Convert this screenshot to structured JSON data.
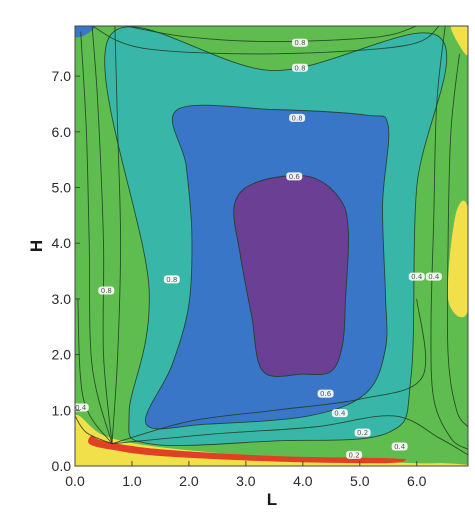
{
  "chart_data": {
    "type": "contour",
    "xlabel": "L",
    "ylabel": "H",
    "xlim": [
      0.0,
      6.9
    ],
    "ylim": [
      0.0,
      7.9
    ],
    "x_ticks": [
      "0.0",
      "1.0",
      "2.0",
      "3.0",
      "4.0",
      "5.0",
      "6.0"
    ],
    "y_ticks": [
      "0.0",
      "1.0",
      "2.0",
      "3.0",
      "4.0",
      "5.0",
      "6.0",
      "7.0"
    ],
    "y_tick_values": [
      0,
      1,
      2,
      3,
      4,
      5,
      6,
      7
    ],
    "x_tick_values": [
      0,
      1,
      2,
      3,
      4,
      5,
      6
    ],
    "grid": false,
    "filled_levels": [
      {
        "color": "#5fbd4f",
        "points": [
          [
            0,
            0
          ],
          [
            6.9,
            0
          ],
          [
            6.9,
            7.9
          ],
          [
            0,
            7.9
          ]
        ]
      },
      {
        "color": "#38b7a9",
        "points": [
          [
            0.95,
            0.95
          ],
          [
            1.3,
            3.2
          ],
          [
            0.6,
            7.7
          ],
          [
            3.5,
            7.1
          ],
          [
            6.4,
            7.7
          ],
          [
            6.0,
            5.0
          ],
          [
            5.9,
            1.6
          ],
          [
            5.5,
            0.6
          ],
          [
            3.5,
            0.45
          ],
          [
            1.3,
            0.4
          ]
        ]
      },
      {
        "color": "#3a76c7",
        "points": [
          [
            1.25,
            0.75
          ],
          [
            1.7,
            1.8
          ],
          [
            2.0,
            2.9
          ],
          [
            2.05,
            4.2
          ],
          [
            1.95,
            5.4
          ],
          [
            1.8,
            6.4
          ],
          [
            3.5,
            6.4
          ],
          [
            5.1,
            6.3
          ],
          [
            5.5,
            6.1
          ],
          [
            5.4,
            4.7
          ],
          [
            5.45,
            3.1
          ],
          [
            5.45,
            2.1
          ],
          [
            5.1,
            1.3
          ],
          [
            4.1,
            0.9
          ],
          [
            2.3,
            0.75
          ]
        ]
      },
      {
        "color": "#6b3f93",
        "points": [
          [
            3.3,
            1.7
          ],
          [
            3.1,
            2.7
          ],
          [
            2.9,
            3.8
          ],
          [
            2.8,
            4.7
          ],
          [
            3.2,
            5.1
          ],
          [
            4.1,
            5.2
          ],
          [
            4.65,
            4.8
          ],
          [
            4.8,
            4.2
          ],
          [
            4.75,
            3.0
          ],
          [
            4.7,
            2.2
          ],
          [
            4.5,
            1.7
          ],
          [
            4.0,
            1.65
          ]
        ]
      },
      {
        "color": "#f2e04a",
        "points": [
          [
            0,
            0
          ],
          [
            0,
            0.9
          ],
          [
            0.5,
            0.55
          ],
          [
            1.4,
            0.35
          ],
          [
            3.2,
            0.18
          ],
          [
            5.0,
            0.1
          ],
          [
            6.0,
            0.05
          ],
          [
            6.5,
            0.05
          ],
          [
            6.9,
            0.02
          ],
          [
            6.9,
            0
          ]
        ]
      },
      {
        "color": "#e04023",
        "points": [
          [
            0.5,
            0.45
          ],
          [
            0.3,
            0.55
          ],
          [
            0.25,
            0.4
          ],
          [
            0.6,
            0.3
          ],
          [
            1.5,
            0.18
          ],
          [
            3.5,
            0.08
          ],
          [
            5.4,
            0.05
          ],
          [
            5.8,
            0.1
          ],
          [
            5.5,
            0.14
          ],
          [
            3.5,
            0.18
          ],
          [
            1.5,
            0.3
          ]
        ]
      },
      {
        "color": "#f2e04a",
        "points": [
          [
            6.55,
            3.0
          ],
          [
            6.68,
            4.5
          ],
          [
            6.9,
            4.6
          ],
          [
            6.9,
            2.8
          ]
        ]
      },
      {
        "color": "#f2e04a",
        "points": [
          [
            6.6,
            7.9
          ],
          [
            6.78,
            7.5
          ],
          [
            6.9,
            7.4
          ],
          [
            6.9,
            7.9
          ]
        ]
      },
      {
        "color": "#3a76c7",
        "points": [
          [
            0,
            7.9
          ],
          [
            0,
            7.7
          ],
          [
            0.2,
            7.75
          ],
          [
            0.35,
            7.9
          ]
        ]
      }
    ],
    "contour_lines": [
      [
        [
          0.95,
          0.95
        ],
        [
          1.3,
          3.2
        ],
        [
          0.6,
          7.7
        ],
        [
          3.5,
          7.1
        ],
        [
          6.4,
          7.7
        ],
        [
          6.0,
          5.0
        ],
        [
          5.9,
          1.6
        ],
        [
          5.5,
          0.6
        ],
        [
          3.5,
          0.45
        ],
        [
          1.3,
          0.4
        ]
      ],
      [
        [
          1.25,
          0.75
        ],
        [
          1.7,
          1.8
        ],
        [
          2.0,
          2.9
        ],
        [
          2.05,
          4.2
        ],
        [
          1.95,
          5.4
        ],
        [
          1.8,
          6.4
        ],
        [
          3.5,
          6.4
        ],
        [
          5.1,
          6.3
        ],
        [
          5.5,
          6.1
        ],
        [
          5.4,
          4.7
        ],
        [
          5.45,
          3.1
        ],
        [
          5.45,
          2.1
        ],
        [
          5.1,
          1.3
        ],
        [
          4.1,
          0.9
        ],
        [
          2.3,
          0.75
        ]
      ],
      [
        [
          3.3,
          1.7
        ],
        [
          3.1,
          2.7
        ],
        [
          2.9,
          3.8
        ],
        [
          2.8,
          4.7
        ],
        [
          3.2,
          5.1
        ],
        [
          4.1,
          5.2
        ],
        [
          4.65,
          4.8
        ],
        [
          4.8,
          4.2
        ],
        [
          4.75,
          3.0
        ],
        [
          4.7,
          2.2
        ],
        [
          4.5,
          1.7
        ],
        [
          4.0,
          1.65
        ]
      ],
      [
        [
          0.65,
          0.4
        ],
        [
          0.3,
          1.8
        ],
        [
          0.25,
          4
        ],
        [
          0.2,
          6
        ],
        [
          0.1,
          7.8
        ]
      ],
      [
        [
          0.65,
          0.4
        ],
        [
          0.5,
          2
        ],
        [
          0.5,
          4
        ],
        [
          0.4,
          6.5
        ],
        [
          0.3,
          7.9
        ]
      ],
      [
        [
          0.65,
          0.4
        ],
        [
          0.75,
          2
        ],
        [
          0.8,
          4
        ],
        [
          0.75,
          6
        ],
        [
          0.7,
          7.9
        ]
      ],
      [
        [
          0.65,
          0.4
        ],
        [
          0.15,
          1.2
        ],
        [
          0.05,
          3
        ]
      ],
      [
        [
          0.3,
          7.9
        ],
        [
          1.2,
          7.5
        ],
        [
          3.5,
          7.4
        ],
        [
          5.8,
          7.55
        ],
        [
          6.4,
          7.9
        ]
      ],
      [
        [
          0.9,
          7.9
        ],
        [
          2.0,
          7.7
        ],
        [
          3.5,
          7.62
        ],
        [
          5.3,
          7.7
        ],
        [
          6.0,
          7.9
        ]
      ],
      [
        [
          6.5,
          7.9
        ],
        [
          6.35,
          6.5
        ],
        [
          6.3,
          4.5
        ],
        [
          6.25,
          2.5
        ],
        [
          6.3,
          1.2
        ],
        [
          6.6,
          0.5
        ],
        [
          6.9,
          0.3
        ]
      ],
      [
        [
          6.75,
          7.4
        ],
        [
          6.6,
          6.0
        ],
        [
          6.55,
          4.0
        ],
        [
          6.55,
          2.0
        ],
        [
          6.7,
          1.0
        ],
        [
          6.9,
          0.7
        ]
      ],
      [
        [
          0.65,
          0.4
        ],
        [
          2.0,
          0.8
        ],
        [
          3.5,
          1.0
        ],
        [
          5.0,
          1.2
        ],
        [
          6.1,
          1.6
        ],
        [
          6.0,
          3.0
        ]
      ],
      [
        [
          0.65,
          0.4
        ],
        [
          2.5,
          0.58
        ],
        [
          4.2,
          0.7
        ],
        [
          5.6,
          0.9
        ],
        [
          6.4,
          0.5
        ],
        [
          6.9,
          0.2
        ]
      ],
      [
        [
          0.65,
          0.4
        ],
        [
          0.2,
          0.6
        ],
        [
          0,
          0.9
        ]
      ]
    ],
    "contour_labels": [
      {
        "x": 3.95,
        "y": 7.6,
        "text": "0.8"
      },
      {
        "x": 3.95,
        "y": 7.15,
        "text": "0.8"
      },
      {
        "x": 3.9,
        "y": 6.25,
        "text": "0.8"
      },
      {
        "x": 3.85,
        "y": 5.2,
        "text": "0.6"
      },
      {
        "x": 1.7,
        "y": 3.35,
        "text": "0.8"
      },
      {
        "x": 0.55,
        "y": 3.15,
        "text": "0.8"
      },
      {
        "x": 6.0,
        "y": 3.4,
        "text": "0.4"
      },
      {
        "x": 6.3,
        "y": 3.4,
        "text": "0.4"
      },
      {
        "x": 0.1,
        "y": 1.05,
        "text": "0.4"
      },
      {
        "x": 4.4,
        "y": 1.3,
        "text": "0.6"
      },
      {
        "x": 4.65,
        "y": 0.95,
        "text": "0.4"
      },
      {
        "x": 5.05,
        "y": 0.6,
        "text": "0.2"
      },
      {
        "x": 4.9,
        "y": 0.2,
        "text": "0.2"
      },
      {
        "x": 5.7,
        "y": 0.35,
        "text": "0.4"
      }
    ]
  }
}
